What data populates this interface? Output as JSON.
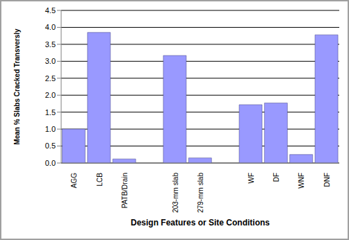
{
  "chart_data": {
    "type": "bar",
    "x_label": "Design Features or Site Conditions",
    "y_label": "Mean % Slabs Cracked Transversly",
    "categories": [
      "AGG",
      "LCB",
      "PATB/Drain",
      null,
      "203-mm slab",
      "279-mm slab",
      null,
      "WF",
      "DF",
      "WNF",
      "DNF"
    ],
    "values": [
      1.0,
      3.85,
      0.12,
      null,
      3.17,
      0.15,
      null,
      1.72,
      1.77,
      0.25,
      3.78
    ],
    "color": "#9999ff",
    "ylim": [
      0,
      4.5
    ],
    "yticks": [
      {
        "value": 0,
        "label": "0.0"
      },
      0.5,
      {
        "value": 1,
        "label": "1.0"
      },
      1.5,
      {
        "value": 2,
        "label": "2.0"
      },
      2.5,
      {
        "value": 3,
        "label": "3.0"
      },
      3.5,
      {
        "value": 4,
        "label": "4.0"
      },
      4.5
    ],
    "grid": true
  }
}
